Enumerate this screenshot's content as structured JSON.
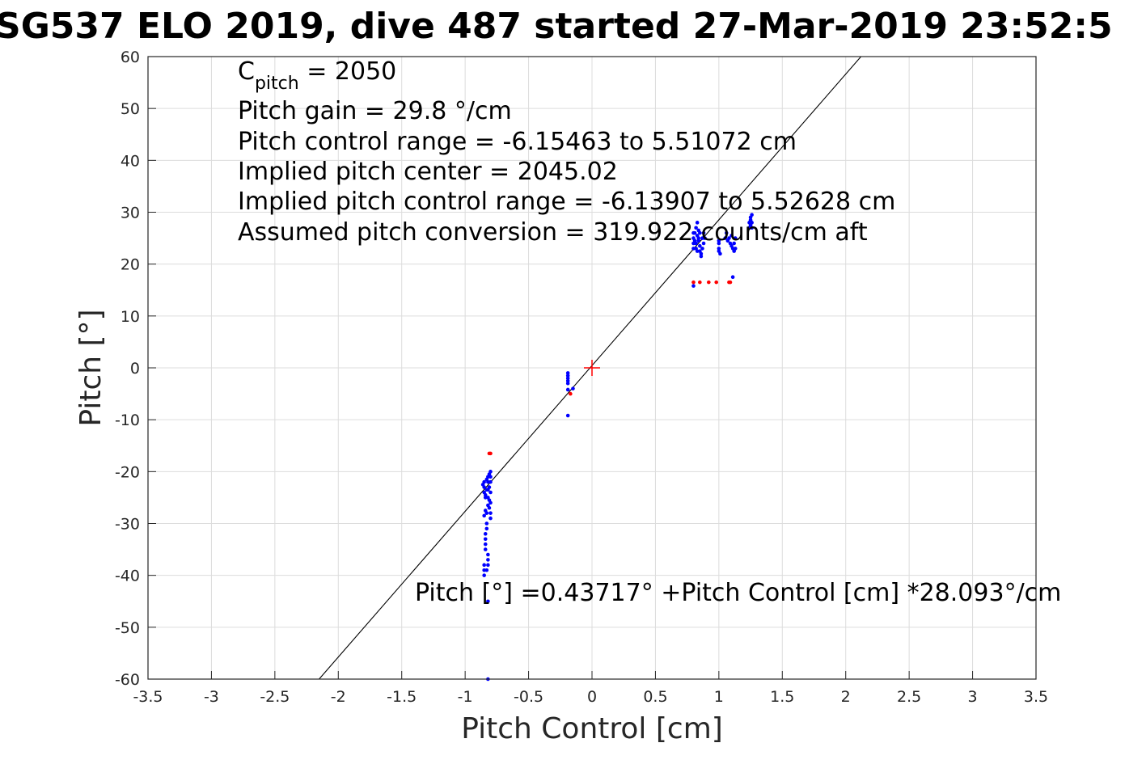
{
  "chart_data": {
    "type": "scatter",
    "title": "SG537 ELO 2019, dive 487 started 27-Mar-2019 23:52:5",
    "xlabel": "Pitch Control [cm]",
    "ylabel": "Pitch [°]",
    "xlim": [
      -3.5,
      3.5
    ],
    "ylim": [
      -60,
      60
    ],
    "xticks": [
      -3.5,
      -3,
      -2.5,
      -2,
      -1.5,
      -1,
      -0.5,
      0,
      0.5,
      1,
      1.5,
      2,
      2.5,
      3,
      3.5
    ],
    "yticks": [
      -60,
      -50,
      -40,
      -30,
      -20,
      -10,
      0,
      10,
      20,
      30,
      40,
      50,
      60
    ],
    "xtick_labels": [
      "-3.5",
      "-3",
      "-2.5",
      "-2",
      "-1.5",
      "-1",
      "-0.5",
      "0",
      "0.5",
      "1",
      "1.5",
      "2",
      "2.5",
      "3",
      "3.5"
    ],
    "ytick_labels": [
      "-60",
      "-50",
      "-40",
      "-30",
      "-20",
      "-10",
      "0",
      "10",
      "20",
      "30",
      "40",
      "50",
      "60"
    ],
    "grid": true,
    "annotations": {
      "c_pitch_main": "C",
      "c_pitch_sub": "pitch",
      "c_pitch_value": " = 2050",
      "lines": [
        "Pitch gain = 29.8 °/cm",
        "Pitch control range = -6.15463 to 5.51072 cm",
        "Implied pitch center = 2045.02",
        "Implied pitch control range = -6.13907 to 5.52628 cm",
        "Assumed pitch conversion = 319.922 counts/cm aft"
      ],
      "fit_text": "Pitch [°] =0.43717° +Pitch Control [cm] *28.093°/cm"
    },
    "fit_line": {
      "intercept": 0.43717,
      "slope": 28.093,
      "color": "#000000"
    },
    "center_marker": {
      "x": 0,
      "y": 0,
      "color": "#ff0000"
    },
    "series": [
      {
        "color": "#0000ff",
        "points": [
          [
            -0.85,
            -22
          ],
          [
            -0.85,
            -23
          ],
          [
            -0.85,
            -24
          ],
          [
            -0.84,
            -25
          ],
          [
            -0.86,
            -22.5
          ],
          [
            -0.83,
            -21.5
          ],
          [
            -0.82,
            -21
          ],
          [
            -0.81,
            -20.5
          ],
          [
            -0.8,
            -20
          ],
          [
            -0.82,
            -22
          ],
          [
            -0.83,
            -23.5
          ],
          [
            -0.84,
            -24.5
          ],
          [
            -0.8,
            -22
          ],
          [
            -0.8,
            -24
          ],
          [
            -0.8,
            -26
          ],
          [
            -0.8,
            -28
          ],
          [
            -0.8,
            -29
          ],
          [
            -0.81,
            -27
          ],
          [
            -0.82,
            -25
          ],
          [
            -0.82,
            -26.5
          ],
          [
            -0.83,
            -28
          ],
          [
            -0.83,
            -30
          ],
          [
            -0.83,
            -31
          ],
          [
            -0.84,
            -33
          ],
          [
            -0.84,
            -35
          ],
          [
            -0.82,
            -36
          ],
          [
            -0.82,
            -37
          ],
          [
            -0.82,
            -38
          ],
          [
            -0.83,
            -39
          ],
          [
            -0.85,
            -38
          ],
          [
            -0.85,
            -39
          ],
          [
            -0.85,
            -40
          ],
          [
            -0.84,
            -34
          ],
          [
            -0.84,
            -32
          ],
          [
            -0.85,
            -28.5
          ],
          [
            -0.84,
            -27.5
          ],
          [
            -0.81,
            -23
          ],
          [
            -0.81,
            -25.5
          ],
          [
            -0.82,
            -23.5
          ],
          [
            -0.8,
            -21
          ],
          [
            -0.82,
            -45
          ],
          [
            -0.82,
            -60
          ],
          [
            -0.19,
            -1
          ],
          [
            -0.19,
            -1.5
          ],
          [
            -0.19,
            -2
          ],
          [
            -0.19,
            -2.5
          ],
          [
            -0.19,
            -3
          ],
          [
            -0.19,
            -4.2
          ],
          [
            -0.15,
            -4
          ],
          [
            -0.19,
            -9.2
          ],
          [
            0.8,
            23
          ],
          [
            0.8,
            24
          ],
          [
            0.8,
            25
          ],
          [
            0.81,
            26
          ],
          [
            0.82,
            27
          ],
          [
            0.83,
            25.5
          ],
          [
            0.84,
            24.5
          ],
          [
            0.85,
            23.5
          ],
          [
            0.85,
            22.5
          ],
          [
            0.86,
            22
          ],
          [
            0.86,
            21.5
          ],
          [
            0.84,
            26.5
          ],
          [
            0.83,
            28
          ],
          [
            0.82,
            24
          ],
          [
            0.87,
            25
          ],
          [
            0.87,
            23
          ],
          [
            0.88,
            24
          ],
          [
            0.88,
            26
          ],
          [
            0.89,
            25
          ],
          [
            0.8,
            15.8
          ],
          [
            0.8,
            26
          ],
          [
            0.81,
            24.5
          ],
          [
            0.82,
            23
          ],
          [
            0.83,
            22.5
          ],
          [
            0.84,
            25
          ],
          [
            0.85,
            26
          ],
          [
            1.0,
            22.5
          ],
          [
            1.0,
            23
          ],
          [
            1.0,
            24
          ],
          [
            1.0,
            24.5
          ],
          [
            1.01,
            22
          ],
          [
            1.05,
            25
          ],
          [
            1.06,
            26
          ],
          [
            1.07,
            24.5
          ],
          [
            1.08,
            25
          ],
          [
            1.09,
            24
          ],
          [
            1.1,
            23.5
          ],
          [
            1.1,
            25.5
          ],
          [
            1.11,
            23
          ],
          [
            1.12,
            22.5
          ],
          [
            1.12,
            24
          ],
          [
            1.13,
            23
          ],
          [
            1.13,
            25
          ],
          [
            1.11,
            17.5
          ],
          [
            1.24,
            27
          ],
          [
            1.24,
            28
          ],
          [
            1.25,
            28.5
          ],
          [
            1.25,
            29
          ],
          [
            1.25,
            27.5
          ],
          [
            1.26,
            29.5
          ],
          [
            1.26,
            28
          ],
          [
            1.26,
            27
          ]
        ]
      },
      {
        "color": "#ff0000",
        "points": [
          [
            -0.8,
            -16.5
          ],
          [
            -0.81,
            -16.5
          ],
          [
            -0.17,
            -5
          ],
          [
            0.8,
            16.5
          ],
          [
            0.85,
            16.5
          ],
          [
            0.92,
            16.5
          ],
          [
            0.98,
            16.5
          ],
          [
            1.08,
            16.5
          ],
          [
            1.09,
            16.5
          ]
        ]
      }
    ]
  }
}
